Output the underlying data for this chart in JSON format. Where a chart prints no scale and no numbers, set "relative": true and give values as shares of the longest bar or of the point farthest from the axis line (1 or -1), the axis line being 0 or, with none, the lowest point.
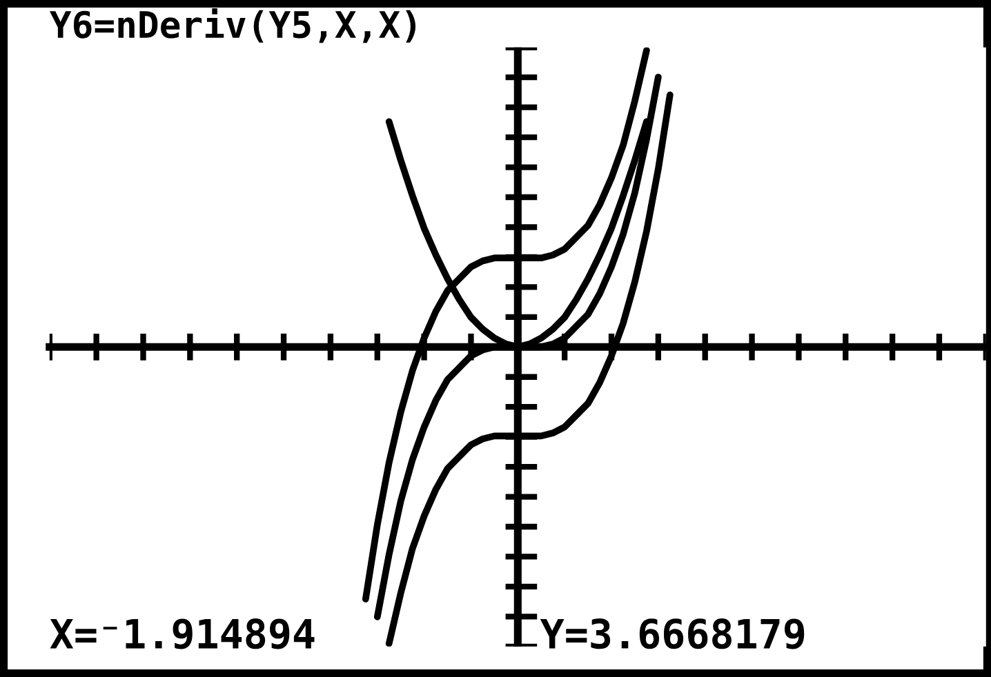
{
  "chart_data": {
    "type": "line",
    "title": "Y6=nDeriv(Y5,X,X)",
    "relative": true,
    "categories": [
      null,
      null,
      null,
      null,
      null,
      null,
      null,
      null,
      null,
      null,
      null,
      null,
      null,
      null,
      null,
      null,
      null,
      null,
      null,
      null,
      null,
      null,
      null,
      null,
      null,
      null,
      null,
      null,
      null,
      null,
      null,
      null,
      null,
      null,
      null,
      null,
      null,
      null,
      null,
      null,
      null,
      null,
      null,
      null,
      null,
      null,
      null,
      null,
      null,
      null,
      null,
      null,
      null,
      null,
      null,
      null,
      null,
      null,
      null,
      null,
      null,
      null,
      null,
      null,
      null,
      null,
      null,
      null,
      null,
      null,
      null,
      null,
      null,
      null,
      null,
      null,
      null,
      null,
      null,
      null,
      null
    ],
    "line_style": "solid",
    "series": [
      {
        "color": "#000000",
        "values": [
          null,
          null,
          null,
          null,
          null,
          null,
          null,
          null,
          null,
          null,
          null,
          null,
          null,
          null,
          null,
          null,
          null,
          null,
          null,
          null,
          null,
          null,
          null,
          null,
          null,
          null,
          null,
          -0.85,
          -0.6,
          -0.39,
          -0.22,
          -0.08,
          0.03,
          0.12,
          0.19,
          0.23,
          0.27,
          0.29,
          0.3,
          0.3,
          0.3,
          0.3,
          0.3,
          0.31,
          0.33,
          0.37,
          0.41,
          0.48,
          0.57,
          0.68,
          0.83,
          1,
          null,
          null,
          null,
          null,
          null,
          null,
          null,
          null,
          null,
          null,
          null,
          null,
          null,
          null,
          null,
          null,
          null,
          null,
          null,
          null,
          null,
          null,
          null,
          null,
          null,
          null,
          null,
          null,
          null
        ]
      },
      {
        "color": "#000000",
        "values": [
          null,
          null,
          null,
          null,
          null,
          null,
          null,
          null,
          null,
          null,
          null,
          null,
          null,
          null,
          null,
          null,
          null,
          null,
          null,
          null,
          null,
          null,
          null,
          null,
          null,
          null,
          null,
          null,
          -0.91,
          -0.7,
          -0.52,
          -0.38,
          -0.27,
          -0.18,
          -0.11,
          -0.07,
          -0.03,
          -0.01,
          0,
          0,
          0,
          0,
          0,
          0.01,
          0.03,
          0.07,
          0.11,
          0.18,
          0.27,
          0.38,
          0.52,
          0.7,
          0.91,
          null,
          null,
          null,
          null,
          null,
          null,
          null,
          null,
          null,
          null,
          null,
          null,
          null,
          null,
          null,
          null,
          null,
          null,
          null,
          null,
          null,
          null,
          null,
          null,
          null,
          null,
          null,
          null
        ]
      },
      {
        "color": "#000000",
        "values": [
          null,
          null,
          null,
          null,
          null,
          null,
          null,
          null,
          null,
          null,
          null,
          null,
          null,
          null,
          null,
          null,
          null,
          null,
          null,
          null,
          null,
          null,
          null,
          null,
          null,
          null,
          null,
          null,
          null,
          -1,
          -0.83,
          -0.68,
          -0.57,
          -0.48,
          -0.41,
          -0.37,
          -0.33,
          -0.31,
          -0.3,
          -0.3,
          -0.3,
          -0.3,
          -0.3,
          -0.29,
          -0.27,
          -0.23,
          -0.19,
          -0.12,
          -0.03,
          0.08,
          0.22,
          0.39,
          0.6,
          0.85,
          null,
          null,
          null,
          null,
          null,
          null,
          null,
          null,
          null,
          null,
          null,
          null,
          null,
          null,
          null,
          null,
          null,
          null,
          null,
          null,
          null,
          null,
          null,
          null,
          null,
          null,
          null
        ]
      },
      {
        "color": "#000000",
        "values": [
          null,
          null,
          null,
          null,
          null,
          null,
          null,
          null,
          null,
          null,
          null,
          null,
          null,
          null,
          null,
          null,
          null,
          null,
          null,
          null,
          null,
          null,
          null,
          null,
          null,
          null,
          null,
          null,
          null,
          0.76,
          0.63,
          0.51,
          0.4,
          0.31,
          0.23,
          0.16,
          0.1,
          0.06,
          0.03,
          0.01,
          0,
          0.01,
          0.03,
          0.06,
          0.1,
          0.16,
          0.23,
          0.31,
          0.4,
          0.51,
          0.63,
          0.76,
          null,
          null,
          null,
          null,
          null,
          null,
          null,
          null,
          null,
          null,
          null,
          null,
          null,
          null,
          null,
          null,
          null,
          null,
          null,
          null,
          null,
          null,
          null,
          null,
          null,
          null,
          null,
          null,
          null
        ]
      }
    ],
    "annotations": [
      "X=⁻1.914894",
      "Y=3.6668179"
    ]
  }
}
